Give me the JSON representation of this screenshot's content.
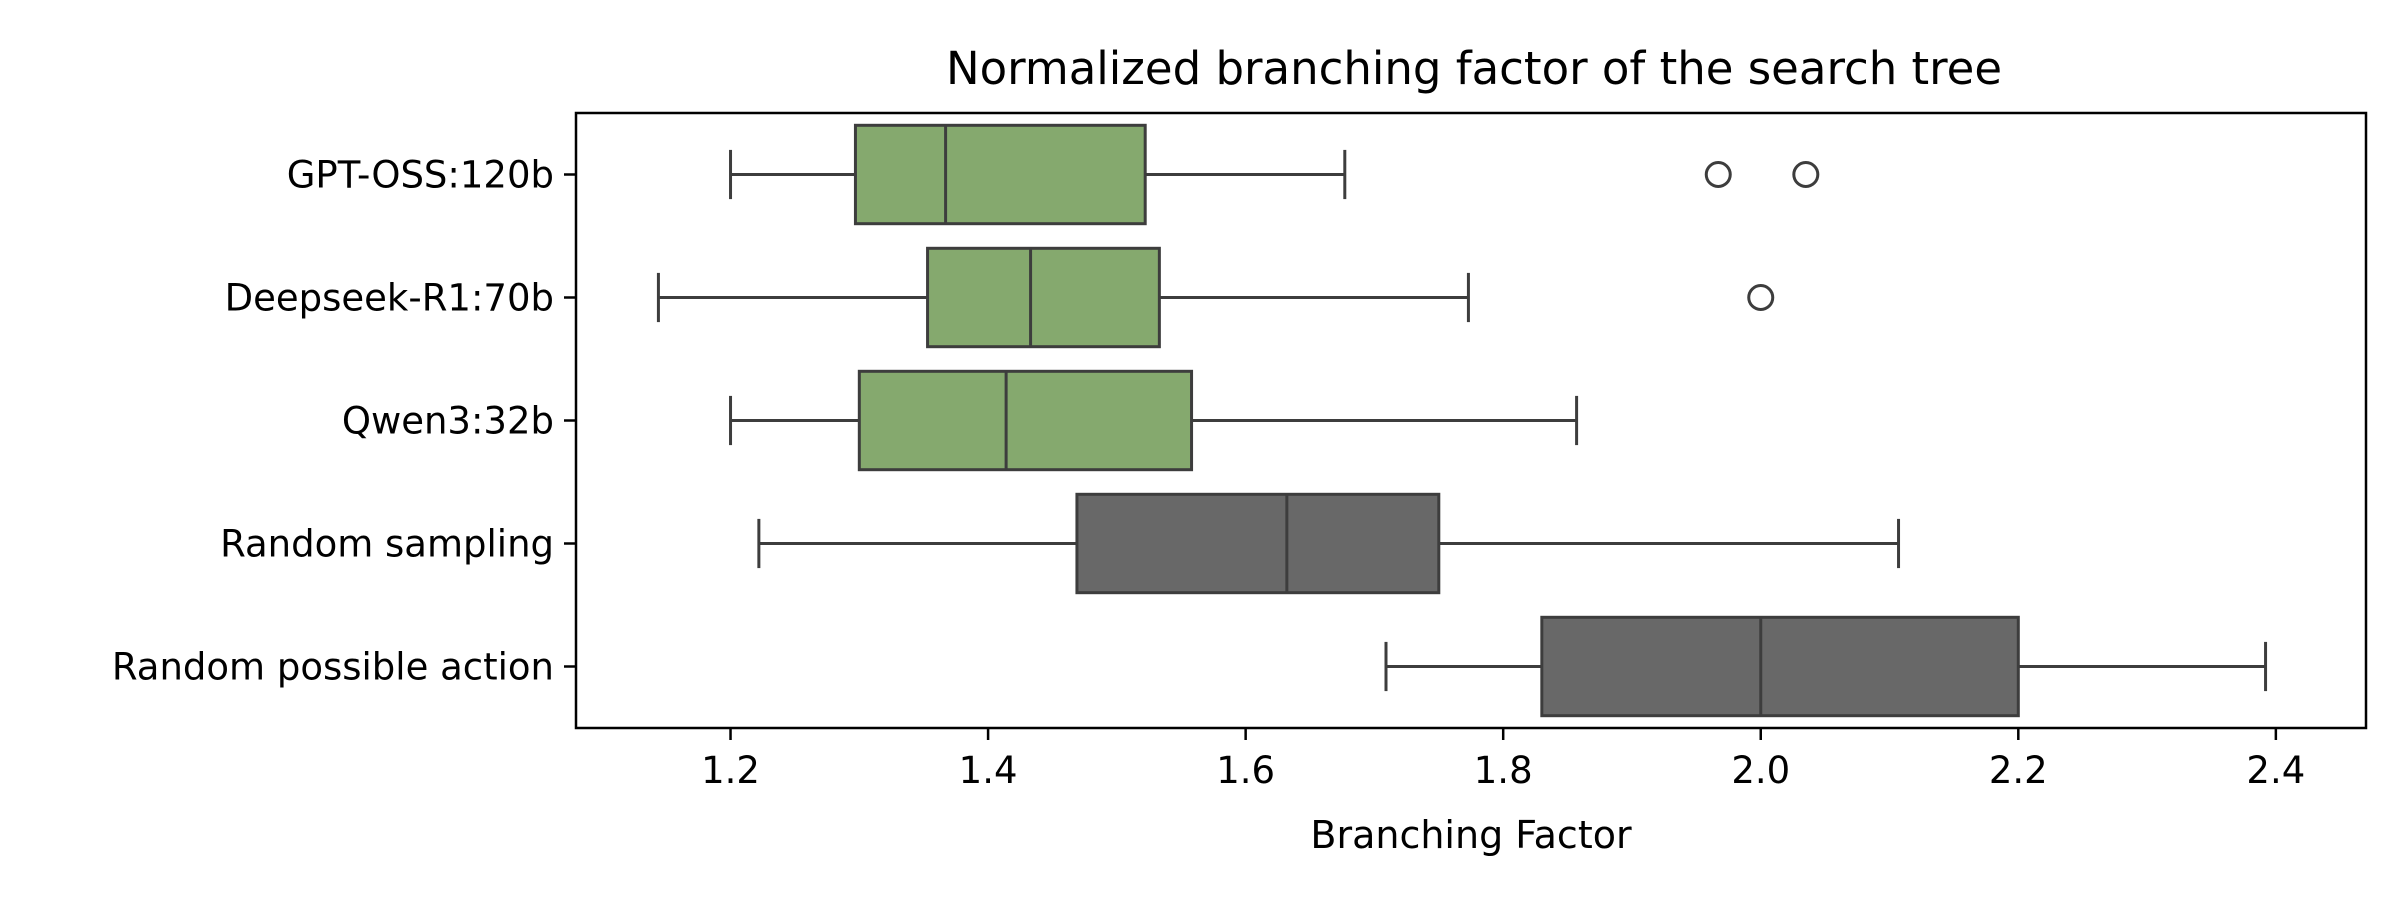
{
  "chart_data": {
    "type": "boxplot",
    "orientation": "horizontal",
    "title": "Normalized branching factor of the search tree",
    "xlabel": "Branching Factor",
    "ylabel": "",
    "xlim": [
      1.08,
      2.47
    ],
    "xticks": [
      1.2,
      1.4,
      1.6,
      1.8,
      2.0,
      2.2,
      2.4
    ],
    "xtick_labels": [
      "1.2",
      "1.4",
      "1.6",
      "1.8",
      "2.0",
      "2.2",
      "2.4"
    ],
    "grid": false,
    "legend": "none",
    "categories": [
      "GPT-OSS:120b",
      "Deepseek-R1:70b",
      "Qwen3:32b",
      "Random sampling",
      "Random possible action"
    ],
    "boxes": [
      {
        "category": "GPT-OSS:120b",
        "whisker_low": 1.2,
        "q1": 1.297,
        "median": 1.367,
        "q3": 1.522,
        "whisker_high": 1.677,
        "outliers": [
          1.967,
          2.035
        ],
        "color": "#85a96e"
      },
      {
        "category": "Deepseek-R1:70b",
        "whisker_low": 1.144,
        "q1": 1.353,
        "median": 1.433,
        "q3": 1.533,
        "whisker_high": 1.773,
        "outliers": [
          2.0
        ],
        "color": "#85a96e"
      },
      {
        "category": "Qwen3:32b",
        "whisker_low": 1.2,
        "q1": 1.3,
        "median": 1.414,
        "q3": 1.558,
        "whisker_high": 1.857,
        "outliers": [],
        "color": "#85a96e"
      },
      {
        "category": "Random sampling",
        "whisker_low": 1.222,
        "q1": 1.469,
        "median": 1.632,
        "q3": 1.75,
        "whisker_high": 2.107,
        "outliers": [],
        "color": "#686868"
      },
      {
        "category": "Random possible action",
        "whisker_low": 1.709,
        "q1": 1.83,
        "median": 2.0,
        "q3": 2.2,
        "whisker_high": 2.392,
        "outliers": [],
        "color": "#686868"
      }
    ],
    "line_color": "#3d3d3d"
  }
}
